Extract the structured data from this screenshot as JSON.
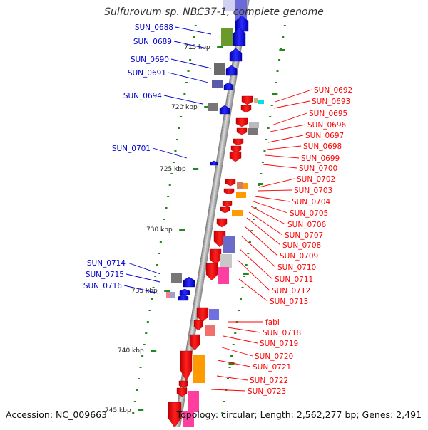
{
  "title": "Sulfurovum sp. NBC37-1, complete genome",
  "footer": {
    "accession": "Accession: NC_009663",
    "topology": "Topology: circular; Length: 2,562,277 bp; Genes: 2,491"
  },
  "colors": {
    "forward": "#0000cc",
    "reverse": "#ff0000",
    "tick": "#228822"
  },
  "ruler": [
    "715 kbp",
    "720 kbp",
    "725 kbp",
    "730 kbp",
    "735 kbp",
    "740 kbp",
    "745 kbp"
  ],
  "genes_forward": [
    "SUN_0688",
    "SUN_0689",
    "SUN_0690",
    "SUN_0691",
    "SUN_0694",
    "SUN_0701",
    "SUN_0714",
    "SUN_0715",
    "SUN_0716"
  ],
  "genes_reverse": [
    "SUN_0692",
    "SUN_0693",
    "SUN_0695",
    "SUN_0696",
    "SUN_0697",
    "SUN_0698",
    "SUN_0699",
    "SUN_0700",
    "SUN_0702",
    "SUN_0703",
    "SUN_0704",
    "SUN_0705",
    "SUN_0706",
    "SUN_0707",
    "SUN_0708",
    "SUN_0709",
    "SUN_0710",
    "SUN_0711",
    "SUN_0712",
    "SUN_0713",
    "fabI",
    "SUN_0718",
    "SUN_0719",
    "SUN_0720",
    "SUN_0721",
    "SUN_0722",
    "SUN_0723"
  ]
}
